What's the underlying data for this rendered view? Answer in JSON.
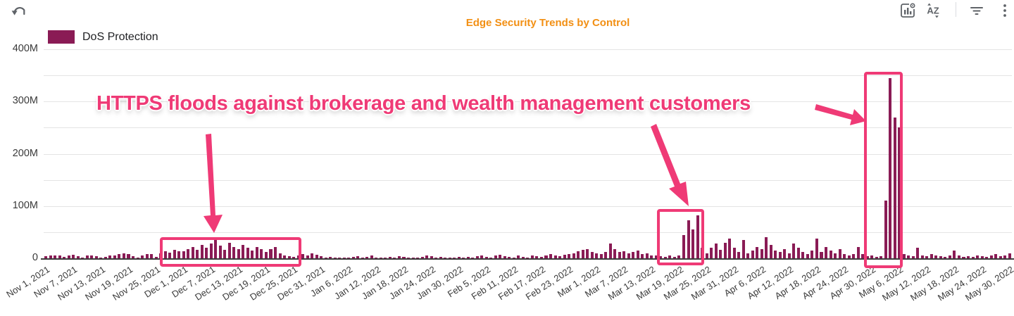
{
  "toolbar": {
    "left_icons": [
      "undo"
    ],
    "sort_icon_text": "AZ",
    "right_icons": [
      "chart-settings",
      "sort-az",
      "filter",
      "more-options"
    ]
  },
  "header": {
    "title": "Edge Security Trends by Control"
  },
  "legend": {
    "label": "DoS Protection"
  },
  "annotation": {
    "text": "HTTPS floods against brokerage and wealth management customers"
  },
  "colors": {
    "bar": "#8A1B55",
    "title_orange": "#F28F13",
    "annotation_pink": "#EF3A76",
    "icon_gray": "#5F6368",
    "axis_text": "#3A3A3A",
    "gridline": "#E4E4E4"
  },
  "chart_data": {
    "type": "bar",
    "title": "Edge Security Trends by Control",
    "series": [
      {
        "name": "DoS Protection",
        "color": "#8A1B55"
      }
    ],
    "x_granularity": "daily",
    "x_start": "Nov 1, 2021",
    "x_end": "May 30, 2022",
    "x_tick_every_days": 6,
    "x_tick_labels": [
      "Nov 1, 2021",
      "Nov 7, 2021",
      "Nov 13, 2021",
      "Nov 19, 2021",
      "Nov 25, 2021",
      "Dec 1, 2021",
      "Dec 7, 2021",
      "Dec 13, 2021",
      "Dec 19, 2021",
      "Dec 25, 2021",
      "Dec 31, 2021",
      "Jan 6, 2022",
      "Jan 12, 2022",
      "Jan 18, 2022",
      "Jan 24, 2022",
      "Jan 30, 2022",
      "Feb 5, 2022",
      "Feb 11, 2022",
      "Feb 17, 2022",
      "Feb 23, 2022",
      "Mar 1, 2022",
      "Mar 7, 2022",
      "Mar 13, 2022",
      "Mar 19, 2022",
      "Mar 25, 2022",
      "Mar 31, 2022",
      "Apr 6, 2022",
      "Apr 12, 2022",
      "Apr 18, 2022",
      "Apr 24, 2022",
      "Apr 30, 2022",
      "May 6, 2022",
      "May 12, 2022",
      "May 18, 2022",
      "May 24, 2022",
      "May 30, 2022"
    ],
    "y_tick_labels": [
      "0",
      "100M",
      "200M",
      "300M",
      "400M"
    ],
    "ylim_millions": [
      0,
      400
    ],
    "grid": true,
    "legend_position": "top-left",
    "values_millions": [
      4,
      6,
      5,
      6,
      3,
      5,
      7,
      4,
      2,
      5,
      6,
      4,
      2,
      3,
      6,
      5,
      8,
      10,
      8,
      4,
      2,
      6,
      8,
      8,
      3,
      10,
      13,
      11,
      16,
      14,
      14,
      18,
      22,
      16,
      25,
      20,
      28,
      35,
      24,
      16,
      30,
      22,
      18,
      26,
      20,
      15,
      21,
      17,
      12,
      17,
      22,
      9,
      6,
      4,
      3,
      5,
      8,
      5,
      9,
      7,
      4,
      2,
      3,
      1,
      2,
      2,
      1,
      3,
      4,
      2,
      3,
      5,
      2,
      1,
      2,
      3,
      2,
      4,
      3,
      2,
      1,
      2,
      3,
      5,
      4,
      2,
      3,
      2,
      1,
      2,
      3,
      2,
      3,
      2,
      4,
      6,
      3,
      2,
      5,
      7,
      4,
      3,
      2,
      5,
      3,
      2,
      6,
      4,
      3,
      5,
      8,
      6,
      4,
      7,
      8,
      10,
      14,
      16,
      18,
      12,
      9,
      8,
      12,
      28,
      18,
      12,
      14,
      10,
      12,
      15,
      8,
      10,
      6,
      5,
      4,
      3,
      5,
      3,
      5,
      45,
      73,
      55,
      82,
      20,
      10,
      20,
      28,
      16,
      30,
      38,
      20,
      12,
      35,
      10,
      15,
      22,
      18,
      40,
      25,
      15,
      12,
      18,
      10,
      28,
      20,
      12,
      8,
      15,
      38,
      12,
      22,
      15,
      10,
      18,
      8,
      5,
      8,
      22,
      8,
      4,
      5,
      3,
      4,
      110,
      345,
      270,
      250,
      8,
      5,
      4,
      20,
      6,
      4,
      8,
      5,
      4,
      3,
      6,
      15,
      5,
      3,
      4,
      3,
      5,
      4,
      3,
      5,
      8,
      4,
      6,
      10
    ],
    "highlighted_date_ranges": [
      {
        "approx_range": "Nov 26 - Dec 27, 2021",
        "peak_millions": 35
      },
      {
        "approx_range": "Mar 15 - Mar 25, 2022",
        "peak_millions": 82
      },
      {
        "approx_range": "May 1 - May 8, 2022",
        "peak_millions": 345
      }
    ]
  }
}
